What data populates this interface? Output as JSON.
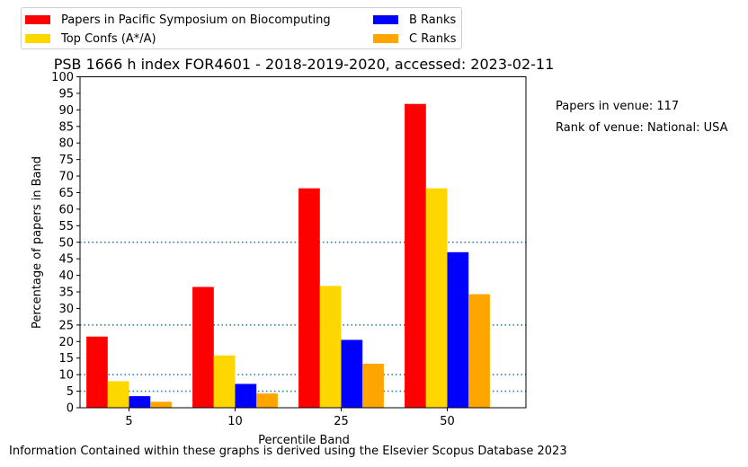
{
  "chart_data": {
    "type": "bar",
    "title": "PSB 1666 h index FOR4601 - 2018-2019-2020, accessed: 2023-02-11",
    "xlabel": "Percentile Band",
    "ylabel": "Percentage of papers in Band",
    "categories": [
      "5",
      "10",
      "25",
      "50"
    ],
    "ylim": [
      0,
      100
    ],
    "yticks": [
      0,
      5,
      10,
      15,
      20,
      25,
      30,
      35,
      40,
      45,
      50,
      55,
      60,
      65,
      70,
      75,
      80,
      85,
      90,
      95,
      100
    ],
    "reference_lines": [
      5,
      10,
      25,
      50
    ],
    "grid": false,
    "legend_position": "top-left",
    "series": [
      {
        "name": "Papers in Pacific Symposium on Biocomputing",
        "color": "#ff0000",
        "values": [
          21.5,
          36.5,
          66.3,
          91.8
        ]
      },
      {
        "name": "Top Confs (A*/A)",
        "color": "#ffd700",
        "values": [
          8.0,
          15.8,
          36.8,
          66.3
        ]
      },
      {
        "name": "B Ranks",
        "color": "#0000ff",
        "values": [
          3.5,
          7.2,
          20.5,
          47.0
        ]
      },
      {
        "name": "C Ranks",
        "color": "#ffa500",
        "values": [
          1.8,
          4.3,
          13.3,
          34.3
        ]
      }
    ]
  },
  "annotations": {
    "papers_in_venue": "Papers in venue: 117",
    "rank_of_venue": "Rank of venue: National: USA"
  },
  "footer": "Information Contained within these graphs is derived using the Elsevier Scopus Database 2023"
}
